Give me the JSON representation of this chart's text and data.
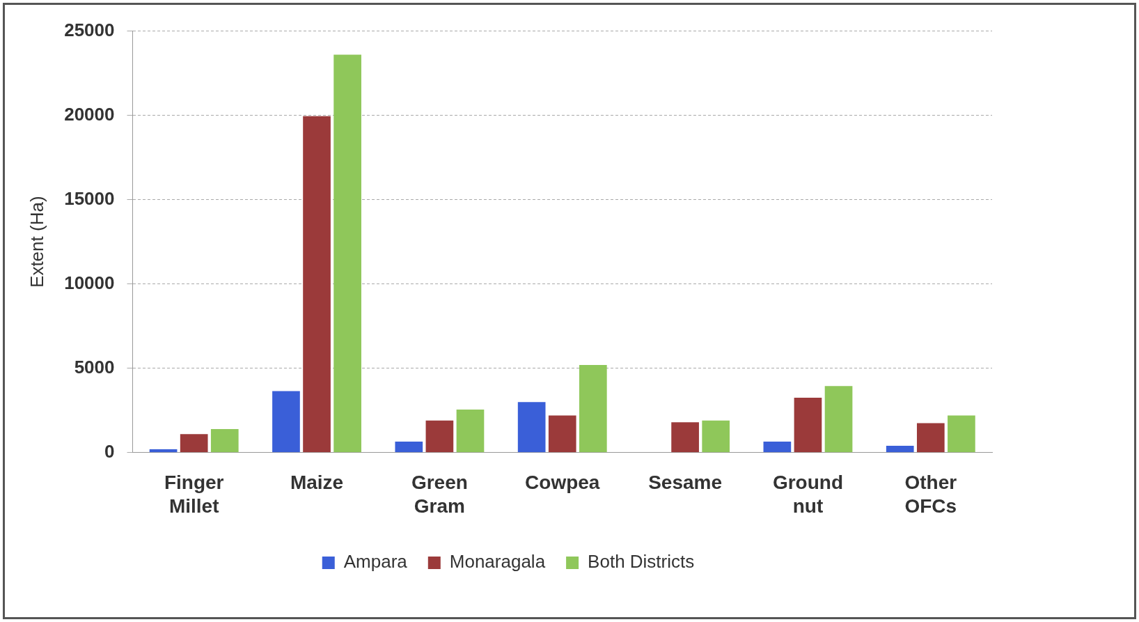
{
  "chart_data": {
    "type": "bar",
    "ylabel": "Extent (Ha)",
    "categories": [
      "Finger Millet",
      "Maize",
      "Green Gram",
      "Cowpea",
      "Sesame",
      "Ground nut",
      "Other OFCs"
    ],
    "series": [
      {
        "name": "Ampara",
        "color": "#3a5fd8",
        "values": [
          200,
          3650,
          650,
          3000,
          0,
          650,
          400
        ]
      },
      {
        "name": "Monaragala",
        "color": "#9b3a3a",
        "values": [
          1100,
          19950,
          1900,
          2200,
          1800,
          3250,
          1750
        ]
      },
      {
        "name": "Both Districts",
        "color": "#8fc75a",
        "values": [
          1400,
          23600,
          2550,
          5200,
          1900,
          3950,
          2200
        ]
      }
    ],
    "ylim": [
      0,
      25000
    ],
    "yticks": [
      0,
      5000,
      10000,
      15000,
      20000,
      25000
    ],
    "grid": "y",
    "legend": "bottom"
  }
}
